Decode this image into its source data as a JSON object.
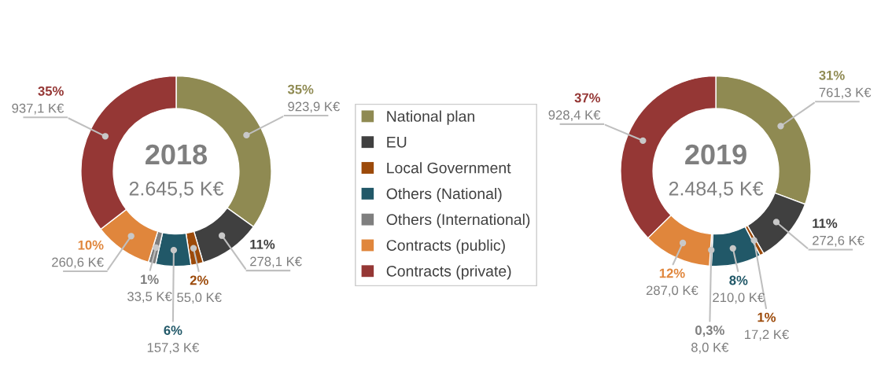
{
  "chart_data": [
    {
      "type": "donut",
      "title": "2018",
      "subtitle": "2.645,5 K€",
      "legend": "right",
      "categories": [
        "National plan",
        "EU",
        "Local Government",
        "Others (National)",
        "Others (International)",
        "Contracts (public)",
        "Contracts (private)"
      ],
      "values": [
        923.9,
        278.1,
        55.0,
        157.3,
        33.5,
        260.6,
        937.1
      ],
      "colors": [
        "#8f8a52",
        "#404040",
        "#9c4a0a",
        "#215868",
        "#7f7f7f",
        "#e0863c",
        "#953735"
      ],
      "value_labels": [
        "35%\n923,9 K€",
        "11%\n278,1 K€",
        "2%\n55,0 K€",
        "6%\n157,3 K€",
        "1%\n33,5 K€",
        "10%\n260,6 K€",
        "35%\n937,1 K€"
      ]
    },
    {
      "type": "donut",
      "title": "2019",
      "subtitle": "2.484,5 K€",
      "categories": [
        null,
        null,
        null,
        null,
        null,
        null,
        null
      ],
      "values": [
        761.3,
        272.6,
        17.2,
        210.0,
        8.0,
        287.0,
        928.4
      ],
      "colors": [
        "#8f8a52",
        "#404040",
        "#9c4a0a",
        "#215868",
        "#7f7f7f",
        "#e0863c",
        "#953735"
      ],
      "value_labels": [
        "31%\n761,3 K€",
        "11%\n272,6 K€",
        "1%\n17,2 K€",
        "8%\n210,0 K€",
        "0,3%\n8,0 K€",
        "12%\n287,0 K€",
        "37%\n928,4 K€"
      ]
    }
  ]
}
